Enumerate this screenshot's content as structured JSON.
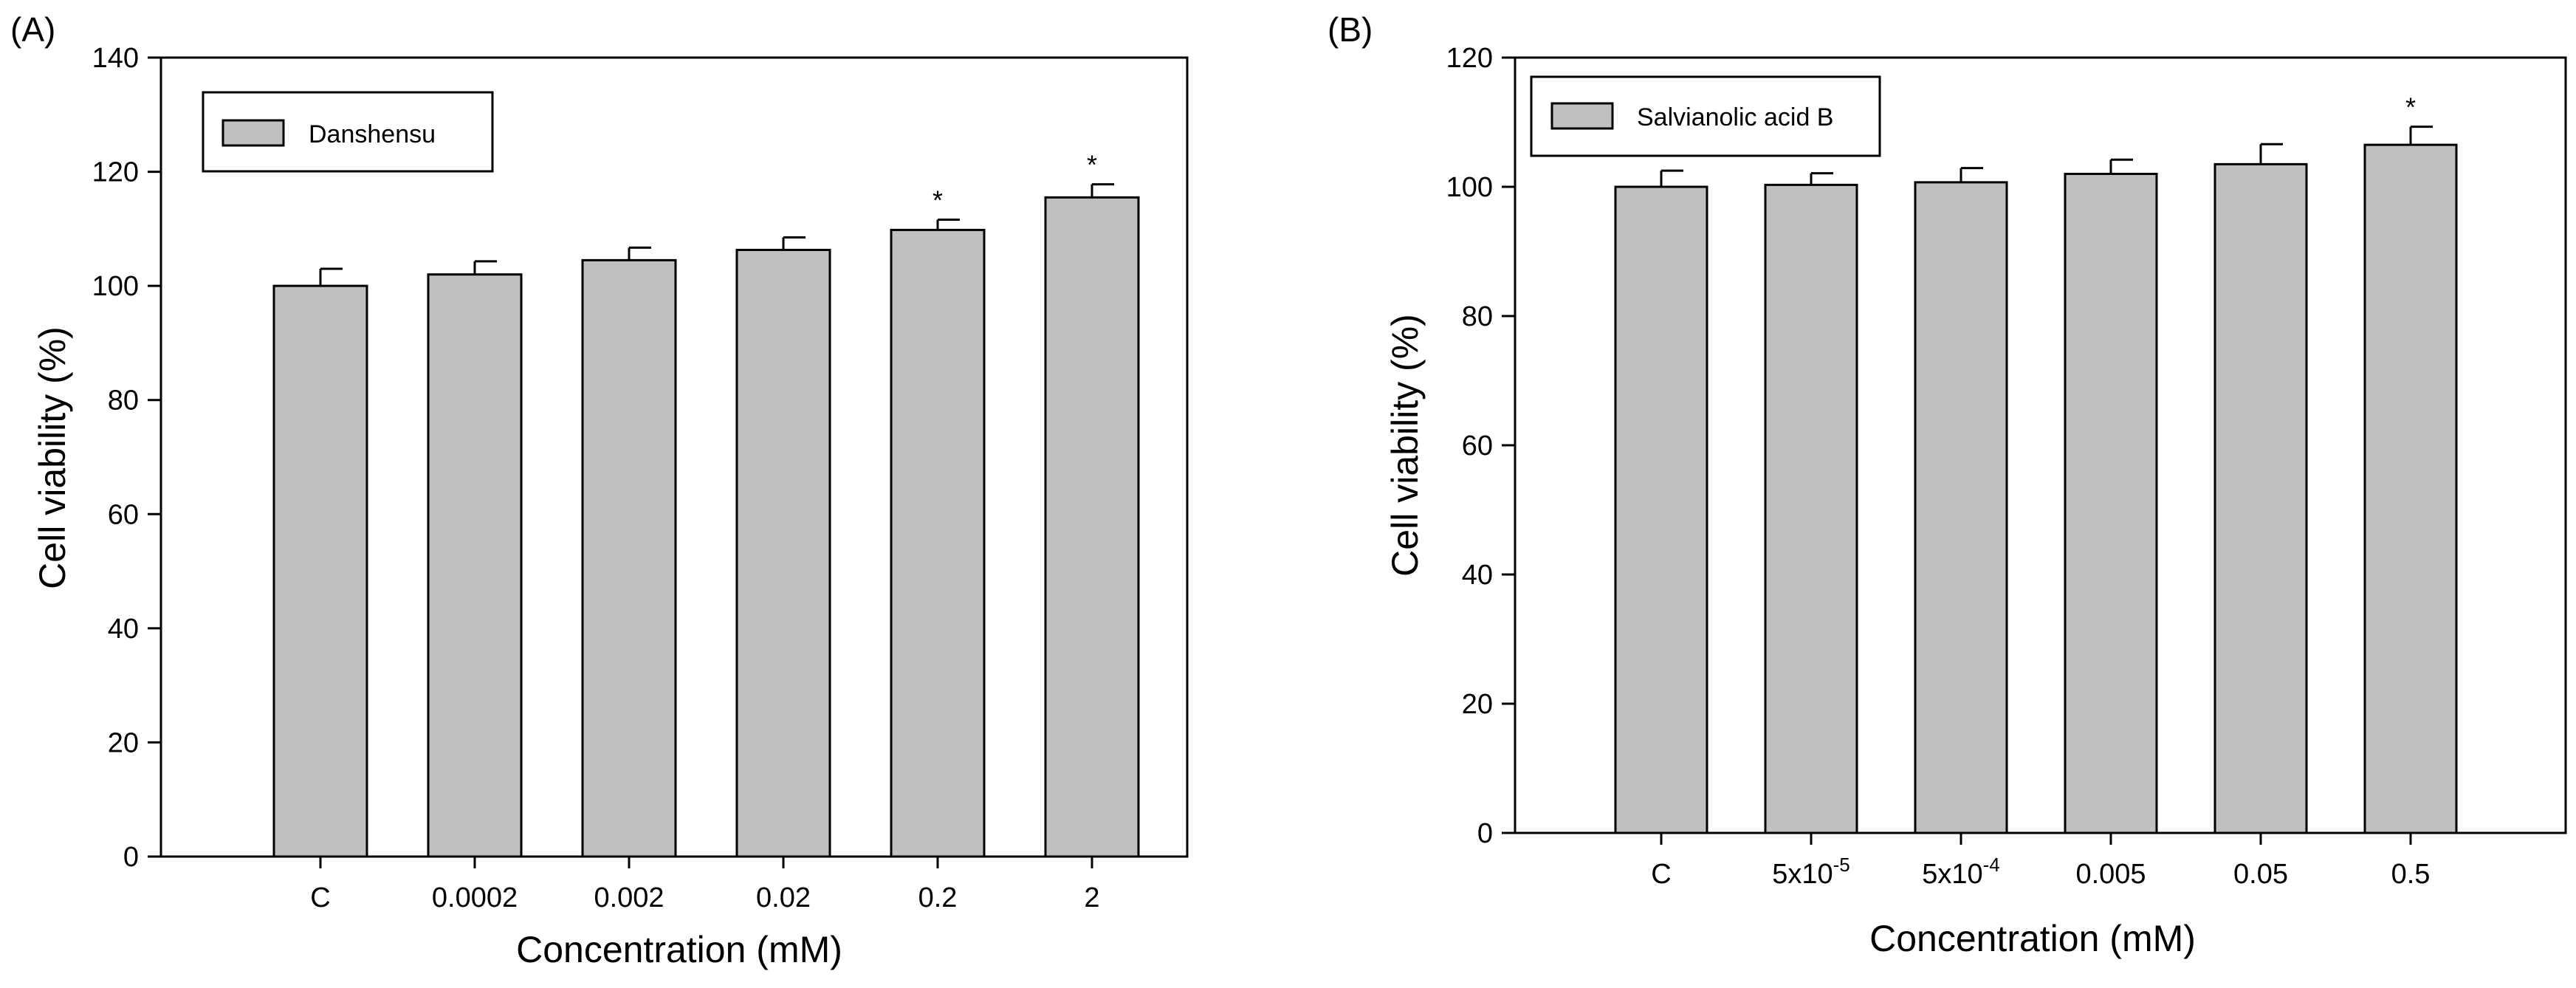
{
  "chart_data": [
    {
      "type": "bar",
      "panel_label": "(A)",
      "title": "",
      "legend": [
        "Danshensu"
      ],
      "legend_position": "top-left",
      "xlabel": "Concentration (mM)",
      "ylabel": "Cell viability (%)",
      "ylim": [
        0,
        140
      ],
      "yticks": [
        0,
        20,
        40,
        60,
        80,
        100,
        120,
        140
      ],
      "categories": [
        {
          "label": "C"
        },
        {
          "label": "0.0002"
        },
        {
          "label": "0.002"
        },
        {
          "label": "0.02"
        },
        {
          "label": "0.2"
        },
        {
          "label": "2"
        }
      ],
      "series": [
        {
          "name": "Danshensu",
          "values": [
            100,
            102,
            104.5,
            106.3,
            109.8,
            115.5
          ],
          "errors": [
            3,
            2.3,
            2.2,
            2.2,
            1.8,
            2.3
          ],
          "annotations": [
            "",
            "",
            "",
            "",
            "*",
            "*"
          ]
        }
      ]
    },
    {
      "type": "bar",
      "panel_label": "(B)",
      "title": "",
      "legend": [
        "Salvianolic acid B"
      ],
      "legend_position": "top-left",
      "xlabel": "Concentration (mM)",
      "ylabel": "Cell viability (%)",
      "ylim": [
        0,
        120
      ],
      "yticks": [
        0,
        20,
        40,
        60,
        80,
        100,
        120
      ],
      "categories": [
        {
          "label": "C"
        },
        {
          "label": "5x10",
          "sup": "-5"
        },
        {
          "label": "5x10",
          "sup": "-4"
        },
        {
          "label": "0.005"
        },
        {
          "label": "0.05"
        },
        {
          "label": "0.5"
        }
      ],
      "series": [
        {
          "name": "Salvianolic acid B",
          "values": [
            100,
            100.3,
            100.7,
            102,
            103.5,
            106.5
          ],
          "errors": [
            2.5,
            1.8,
            2.2,
            2.2,
            3.1,
            2.8
          ],
          "annotations": [
            "",
            "",
            "",
            "",
            "",
            "*"
          ]
        }
      ]
    }
  ]
}
